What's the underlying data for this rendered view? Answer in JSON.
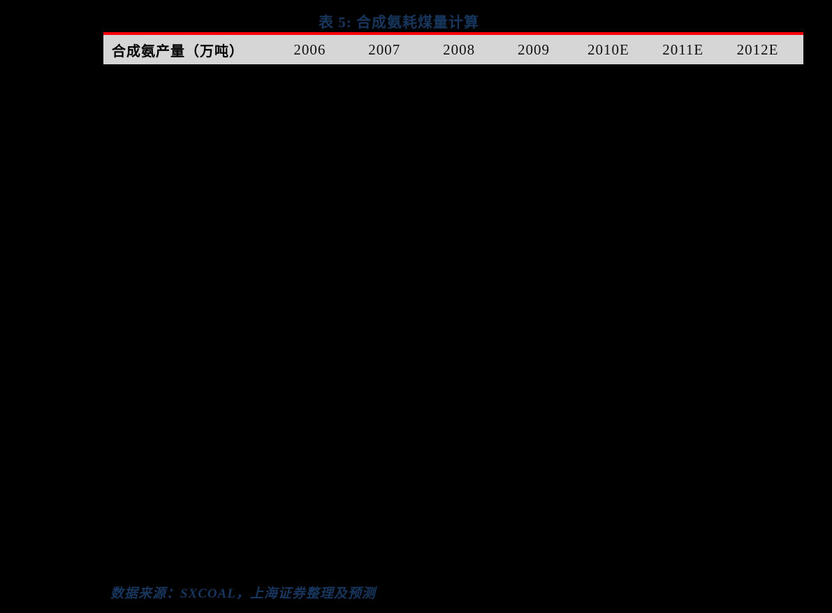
{
  "document": {
    "table": {
      "title": "表 5: 合成氨耗煤量计算",
      "header": {
        "row_label": "合成氨产量（万吨）",
        "years": [
          "2006",
          "2007",
          "2008",
          "2009",
          "2010E",
          "2011E",
          "2012E"
        ]
      },
      "rows": []
    },
    "source_note": "数据来源：SXCOAL，上海证券整理及预测",
    "colors": {
      "page_background": "#000000",
      "title_text": "#17365D",
      "title_rule": "#FF0000",
      "header_background": "#D6D6D6",
      "header_text": "#000000",
      "source_text": "#17365D"
    }
  }
}
